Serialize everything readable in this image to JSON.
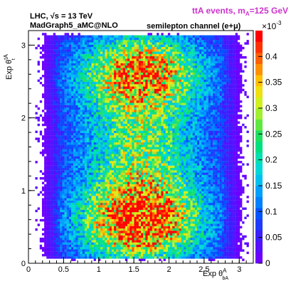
{
  "header": {
    "title": "ttA events, m",
    "title_sub": "A",
    "title_suffix": "=125 GeV",
    "title_color": "#cc33cc",
    "line1_prefix": "LHC, ",
    "line1_sqrt": "√",
    "line1_suffix": "s = 13 TeV",
    "line2": "MadGraph5_aMC@NLO",
    "channel": "semilepton channel (e+μ)"
  },
  "chart_data": {
    "type": "heatmap",
    "xlabel": "Exp θ",
    "xlabel_sup": "A",
    "xlabel_sub": "bA",
    "ylabel": "Exp θ",
    "ylabel_sup": "tA",
    "ylabel_sub": "t",
    "xlim": [
      0,
      3.2
    ],
    "ylim": [
      0,
      3.2
    ],
    "x_ticks": [
      "0",
      "0.5",
      "1",
      "1.5",
      "2",
      "2.5",
      "3"
    ],
    "x_tick_values": [
      0,
      0.5,
      1,
      1.5,
      2,
      2.5,
      3
    ],
    "y_ticks": [
      "0",
      "1",
      "2",
      "3"
    ],
    "y_tick_values": [
      0,
      1,
      2,
      3
    ],
    "zlim": [
      0,
      0.00045
    ],
    "z_multiplier": "×10",
    "z_exponent": "-3",
    "z_ticks": [
      "0",
      "0.05",
      "0.1",
      "0.15",
      "0.2",
      "0.25",
      "0.3",
      "0.35",
      "0.4"
    ],
    "z_tick_values": [
      0,
      0.05,
      0.1,
      0.15,
      0.2,
      0.25,
      0.3,
      0.35,
      0.4
    ],
    "palette": [
      "#6b00ff",
      "#5510ff",
      "#3a1fff",
      "#1f3aff",
      "#0055ff",
      "#0080ff",
      "#00a0ff",
      "#00c0f0",
      "#00d8d8",
      "#00e0b0",
      "#00e080",
      "#20e060",
      "#60e840",
      "#a0f030",
      "#d0f020",
      "#f0e010",
      "#ffc000",
      "#ff9000",
      "#ff6000",
      "#ff3000",
      "#ff0000"
    ],
    "bins": 100
  }
}
